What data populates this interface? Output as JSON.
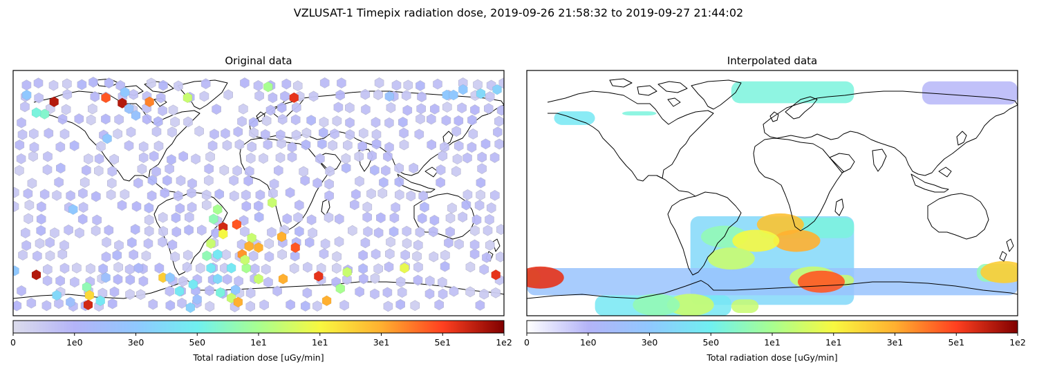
{
  "figure": {
    "suptitle": "VZLUSAT-1 Timepix radiation dose, 2019-09-26 21:58:32 to 2019-09-27 21:44:02"
  },
  "colormap": {
    "stops": [
      "#dcdcec",
      "#b4b4f8",
      "#90c8ff",
      "#70f0f0",
      "#a8ff90",
      "#f8f840",
      "#ffb030",
      "#ff4020",
      "#800000"
    ]
  },
  "chart_data": [
    {
      "type": "scatter",
      "title": "Original data",
      "xlabel": "",
      "ylabel": "",
      "xlim": [
        -180,
        180
      ],
      "ylim": [
        -90,
        90
      ],
      "projection": "PlateCarree world map with coastlines",
      "marker": "hexagon",
      "colorbar": {
        "label": "Total radiation dose [uGy/min]",
        "ticks": [
          "0",
          "1e0",
          "3e0",
          "5e0",
          "1e1",
          "1e1",
          "3e1",
          "5e1",
          "1e2"
        ]
      },
      "hot_points": [
        {
          "lon": -150,
          "lat": 67,
          "level": 0.95
        },
        {
          "lon": -112,
          "lat": 70,
          "level": 0.85
        },
        {
          "lon": -100,
          "lat": 66,
          "level": 0.95
        },
        {
          "lon": -80,
          "lat": 67,
          "level": 0.8
        },
        {
          "lon": -52,
          "lat": 70,
          "level": 0.55
        },
        {
          "lon": 26,
          "lat": 70,
          "level": 0.9
        },
        {
          "lon": -157,
          "lat": 58,
          "level": 0.42
        },
        {
          "lon": -136,
          "lat": -12,
          "level": 0.25
        },
        {
          "lon": -30,
          "lat": -12,
          "level": 0.5
        },
        {
          "lon": -26,
          "lat": -25,
          "level": 0.92
        },
        {
          "lon": -16,
          "lat": -23,
          "level": 0.85
        },
        {
          "lon": -5,
          "lat": -33,
          "level": 0.55
        },
        {
          "lon": -35,
          "lat": -37,
          "level": 0.55
        },
        {
          "lon": -26,
          "lat": -30,
          "level": 0.62
        },
        {
          "lon": -12,
          "lat": -45,
          "level": 0.78
        },
        {
          "lon": -7,
          "lat": -39,
          "level": 0.75
        },
        {
          "lon": 0,
          "lat": -40,
          "level": 0.75
        },
        {
          "lon": 17,
          "lat": -32,
          "level": 0.75
        },
        {
          "lon": 27,
          "lat": -40,
          "level": 0.85
        },
        {
          "lon": 10,
          "lat": -7,
          "level": 0.55
        },
        {
          "lon": -33,
          "lat": -19,
          "level": 0.45
        },
        {
          "lon": -38,
          "lat": -46,
          "level": 0.45
        },
        {
          "lon": -9,
          "lat": -55,
          "level": 0.5
        },
        {
          "lon": -10,
          "lat": -49,
          "level": 0.55
        },
        {
          "lon": -30,
          "lat": -45,
          "level": 0.35
        },
        {
          "lon": -35,
          "lat": -55,
          "level": 0.35
        },
        {
          "lon": -20,
          "lat": -55,
          "level": 0.35
        },
        {
          "lon": -30,
          "lat": -63,
          "level": 0.3
        },
        {
          "lon": -28,
          "lat": -73,
          "level": 0.4
        },
        {
          "lon": -17,
          "lat": -71,
          "level": 0.25
        },
        {
          "lon": -48,
          "lat": -67,
          "level": 0.35
        },
        {
          "lon": -20,
          "lat": -77,
          "level": 0.55
        },
        {
          "lon": -15,
          "lat": -80,
          "level": 0.75
        },
        {
          "lon": -126,
          "lat": -69,
          "level": 0.45
        },
        {
          "lon": -138,
          "lat": -80,
          "level": 0.2
        },
        {
          "lon": -125,
          "lat": -82,
          "level": 0.92
        },
        {
          "lon": -163,
          "lat": -60,
          "level": 0.95
        },
        {
          "lon": -124,
          "lat": -75,
          "level": 0.68
        },
        {
          "lon": -112,
          "lat": -62,
          "level": 0.2
        },
        {
          "lon": -70,
          "lat": -62,
          "level": 0.7
        },
        {
          "lon": -65,
          "lat": -62,
          "level": 0.25
        },
        {
          "lon": -88,
          "lat": -55,
          "level": 0.15
        },
        {
          "lon": -148,
          "lat": -75,
          "level": 0.3
        },
        {
          "lon": -116,
          "lat": -79,
          "level": 0.35
        },
        {
          "lon": -58,
          "lat": -72,
          "level": 0.35
        },
        {
          "lon": 0,
          "lat": -63,
          "level": 0.55
        },
        {
          "lon": 18,
          "lat": -63,
          "level": 0.75
        },
        {
          "lon": 44,
          "lat": -61,
          "level": 0.9
        },
        {
          "lon": 65,
          "lat": -58,
          "level": 0.55
        },
        {
          "lon": 107,
          "lat": -55,
          "level": 0.6
        },
        {
          "lon": 174,
          "lat": -60,
          "level": 0.9
        },
        {
          "lon": -179,
          "lat": -57,
          "level": 0.25
        },
        {
          "lon": 60,
          "lat": -70,
          "level": 0.5
        },
        {
          "lon": 50,
          "lat": -79,
          "level": 0.75
        },
        {
          "lon": -45,
          "lat": -78,
          "level": 0.2
        },
        {
          "lon": -50,
          "lat": -84,
          "level": 0.28
        },
        {
          "lon": -170,
          "lat": 72,
          "level": 0.25
        },
        {
          "lon": 150,
          "lat": 76,
          "level": 0.25
        },
        {
          "lon": 175,
          "lat": 76,
          "level": 0.28
        },
        {
          "lon": 163,
          "lat": 73,
          "level": 0.3
        },
        {
          "lon": 138,
          "lat": 72,
          "level": 0.25
        },
        {
          "lon": 143,
          "lat": 72,
          "level": 0.25
        },
        {
          "lon": 96,
          "lat": 71,
          "level": 0.22
        },
        {
          "lon": 7,
          "lat": 78,
          "level": 0.5
        },
        {
          "lon": -98,
          "lat": 74,
          "level": 0.25
        },
        {
          "lon": -95,
          "lat": 62,
          "level": 0.22
        },
        {
          "lon": -163,
          "lat": 59,
          "level": 0.4
        },
        {
          "lon": -111,
          "lat": 40,
          "level": 0.25
        },
        {
          "lon": -90,
          "lat": 57,
          "level": 0.22
        }
      ]
    },
    {
      "type": "heatmap",
      "title": "Interpolated data",
      "xlabel": "",
      "ylabel": "",
      "xlim": [
        -180,
        180
      ],
      "ylim": [
        -90,
        90
      ],
      "projection": "PlateCarree world map with coastlines",
      "colorbar": {
        "label": "Total radiation dose [uGy/min]",
        "ticks": [
          "0",
          "1e0",
          "3e0",
          "5e0",
          "1e1",
          "1e1",
          "3e1",
          "5e1",
          "1e2"
        ]
      },
      "regions": [
        {
          "lon_min": -60,
          "lon_max": 60,
          "lat_min": -82,
          "lat_max": -17,
          "level": 0.3
        },
        {
          "lon_min": -180,
          "lon_max": 180,
          "lat_min": -75,
          "lat_max": -55,
          "level": 0.22
        },
        {
          "lon_min": -180,
          "lon_max": -170,
          "lat_min": -68,
          "lat_max": -56,
          "level": 0.45
        },
        {
          "lon_min": -130,
          "lon_max": -30,
          "lat_min": -90,
          "lat_max": -75,
          "level": 0.35
        },
        {
          "lon_min": -30,
          "lon_max": -10,
          "lat_min": -88,
          "lat_max": -78,
          "level": 0.55
        },
        {
          "lon_min": -10,
          "lon_max": 60,
          "lat_min": -33,
          "lat_max": -18,
          "level": 0.4
        },
        {
          "lon_min": 30,
          "lon_max": 60,
          "lat_min": -68,
          "lat_max": -60,
          "level": 0.55
        },
        {
          "lon_min": 150,
          "lon_max": 180,
          "lat_min": -65,
          "lat_max": -52,
          "level": 0.45
        },
        {
          "lon_min": -160,
          "lon_max": -130,
          "lat_min": 60,
          "lat_max": 50,
          "level": 0.35
        },
        {
          "lon_min": -110,
          "lon_max": -85,
          "lat_min": 60,
          "lat_max": 57,
          "level": 0.4
        },
        {
          "lon_min": -30,
          "lon_max": 60,
          "lat_min": 82,
          "lat_max": 66,
          "level": 0.4
        },
        {
          "lon_min": 110,
          "lon_max": 180,
          "lat_min": 82,
          "lat_max": 65,
          "level": 0.12
        }
      ],
      "hot_regions": [
        {
          "lon": -35,
          "lat": -32,
          "level": 0.45
        },
        {
          "lon": 6,
          "lat": -23,
          "level": 0.72
        },
        {
          "lon": 18,
          "lat": -35,
          "level": 0.75
        },
        {
          "lon": -12,
          "lat": -35,
          "level": 0.62
        },
        {
          "lon": -30,
          "lat": -48,
          "level": 0.55
        },
        {
          "lon": 30,
          "lat": -62,
          "level": 0.55
        },
        {
          "lon": 36,
          "lat": -65,
          "level": 0.85
        },
        {
          "lon": -170,
          "lat": -62,
          "level": 0.9
        },
        {
          "lon": 170,
          "lat": -58,
          "level": 0.7
        },
        {
          "lon": -60,
          "lat": -82,
          "level": 0.55
        },
        {
          "lon": -85,
          "lat": -82,
          "level": 0.45
        }
      ]
    }
  ]
}
